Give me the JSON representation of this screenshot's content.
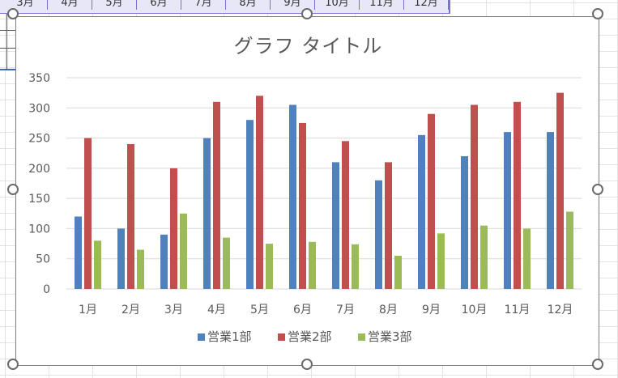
{
  "sheet": {
    "month_headers": [
      "3月",
      "4月",
      "5月",
      "6月",
      "7月",
      "8月",
      "9月",
      "10月",
      "11月",
      "12月"
    ]
  },
  "chart_data": {
    "type": "bar",
    "title": "グラフ タイトル",
    "categories": [
      "1月",
      "2月",
      "3月",
      "4月",
      "5月",
      "6月",
      "7月",
      "8月",
      "9月",
      "10月",
      "11月",
      "12月"
    ],
    "series": [
      {
        "name": "営業1部",
        "color": "#4f81bd",
        "values": [
          120,
          100,
          90,
          250,
          280,
          305,
          210,
          180,
          255,
          220,
          260,
          260
        ]
      },
      {
        "name": "営業2部",
        "color": "#c0504d",
        "values": [
          250,
          240,
          200,
          310,
          320,
          275,
          245,
          210,
          290,
          305,
          310,
          325
        ]
      },
      {
        "name": "営業3部",
        "color": "#9bbb59",
        "values": [
          80,
          65,
          125,
          85,
          75,
          78,
          74,
          55,
          92,
          105,
          100,
          128
        ]
      }
    ],
    "ylim": [
      0,
      350
    ],
    "yticks": [
      0,
      50,
      100,
      150,
      200,
      250,
      300,
      350
    ],
    "grid": true,
    "legend": "bottom"
  }
}
